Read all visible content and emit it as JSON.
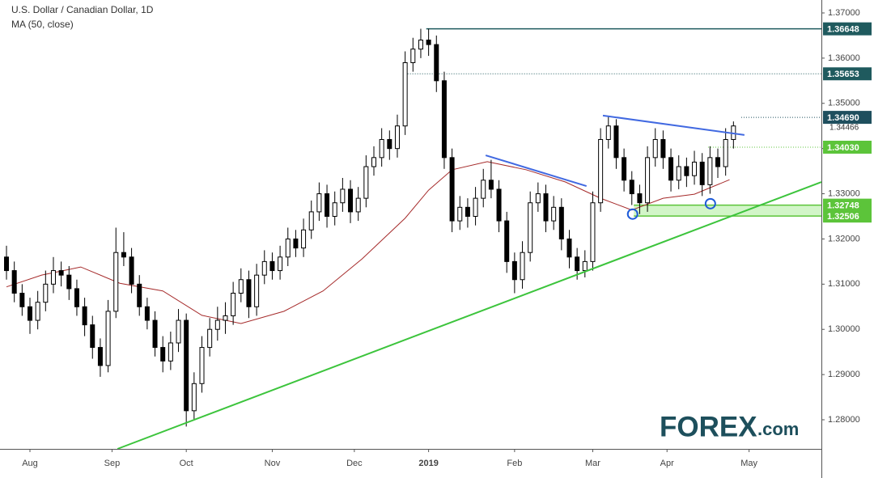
{
  "chart_data": {
    "type": "candlestick",
    "title": "U.S. Dollar / Canadian Dollar, 1D",
    "subtitle": "MA (50, close)",
    "x": [
      0,
      2,
      4,
      6,
      8,
      10,
      12,
      14,
      16,
      18,
      20,
      22,
      24,
      26,
      28,
      30,
      32,
      34,
      36,
      38,
      40,
      42,
      44,
      46,
      48,
      50,
      52,
      54,
      56,
      58,
      60,
      62,
      64,
      66,
      68,
      70,
      72,
      74,
      76,
      78,
      80,
      82,
      84,
      86,
      88,
      90,
      92,
      94,
      96,
      98,
      100,
      102,
      104,
      106,
      108,
      110,
      112,
      114,
      116,
      118,
      120,
      122,
      124,
      126,
      128,
      130,
      132,
      134,
      136,
      138,
      140,
      142,
      144,
      146,
      148,
      150,
      152,
      154,
      156,
      158,
      160,
      162,
      164,
      166,
      168,
      170,
      172,
      174,
      176,
      178,
      180,
      182,
      184,
      186
    ],
    "open": [
      1.316,
      1.313,
      1.308,
      1.305,
      1.302,
      1.306,
      1.31,
      1.313,
      1.312,
      1.309,
      1.305,
      1.301,
      1.296,
      1.292,
      1.304,
      1.317,
      1.316,
      1.31,
      1.305,
      1.302,
      1.296,
      1.293,
      1.297,
      1.302,
      1.282,
      1.288,
      1.296,
      1.3,
      1.302,
      1.303,
      1.308,
      1.311,
      1.305,
      1.312,
      1.315,
      1.313,
      1.316,
      1.32,
      1.318,
      1.322,
      1.326,
      1.33,
      1.325,
      1.328,
      1.331,
      1.326,
      1.329,
      1.336,
      1.338,
      1.342,
      1.34,
      1.345,
      1.359,
      1.362,
      1.364,
      1.363,
      1.355,
      1.338,
      1.324,
      1.327,
      1.325,
      1.329,
      1.333,
      1.331,
      1.324,
      1.315,
      1.311,
      1.317,
      1.328,
      1.33,
      1.324,
      1.327,
      1.32,
      1.316,
      1.313,
      1.315,
      1.328,
      1.342,
      1.345,
      1.338,
      1.333,
      1.33,
      1.328,
      1.338,
      1.342,
      1.338,
      1.333,
      1.336,
      1.334,
      1.337,
      1.332,
      1.338,
      1.336,
      1.342
    ],
    "high": [
      1.3185,
      1.315,
      1.31,
      1.307,
      1.3085,
      1.313,
      1.316,
      1.315,
      1.314,
      1.311,
      1.307,
      1.303,
      1.298,
      1.3065,
      1.3225,
      1.3215,
      1.318,
      1.312,
      1.307,
      1.304,
      1.2985,
      1.2995,
      1.3045,
      1.3035,
      1.2905,
      1.2985,
      1.3025,
      1.305,
      1.306,
      1.3105,
      1.3135,
      1.313,
      1.3145,
      1.3175,
      1.317,
      1.3185,
      1.3225,
      1.322,
      1.3245,
      1.3285,
      1.3325,
      1.332,
      1.3305,
      1.3335,
      1.333,
      1.3315,
      1.3385,
      1.3405,
      1.3445,
      1.344,
      1.3475,
      1.3615,
      1.3645,
      1.3665,
      1.3665,
      1.365,
      1.357,
      1.34,
      1.3295,
      1.329,
      1.3315,
      1.3355,
      1.3375,
      1.333,
      1.326,
      1.317,
      1.3195,
      1.3305,
      1.3325,
      1.332,
      1.3295,
      1.329,
      1.322,
      1.318,
      1.3175,
      1.3305,
      1.3445,
      1.347,
      1.3465,
      1.34,
      1.335,
      1.332,
      1.3405,
      1.3445,
      1.344,
      1.34,
      1.3385,
      1.338,
      1.3395,
      1.339,
      1.3405,
      1.34,
      1.3445,
      1.346
    ],
    "low": [
      1.311,
      1.306,
      1.303,
      1.299,
      1.3,
      1.304,
      1.308,
      1.3095,
      1.3065,
      1.303,
      1.2985,
      1.2935,
      1.2895,
      1.2905,
      1.3025,
      1.314,
      1.308,
      1.303,
      1.3,
      1.294,
      1.2905,
      1.291,
      1.295,
      1.2785,
      1.28,
      1.286,
      1.294,
      1.2975,
      1.299,
      1.301,
      1.306,
      1.3025,
      1.303,
      1.31,
      1.311,
      1.311,
      1.314,
      1.316,
      1.316,
      1.32,
      1.324,
      1.3225,
      1.323,
      1.326,
      1.3235,
      1.324,
      1.327,
      1.334,
      1.336,
      1.3375,
      1.338,
      1.343,
      1.357,
      1.36,
      1.3605,
      1.3525,
      1.3355,
      1.3215,
      1.322,
      1.3225,
      1.323,
      1.327,
      1.329,
      1.3215,
      1.3125,
      1.308,
      1.309,
      1.315,
      1.326,
      1.3215,
      1.322,
      1.3175,
      1.3135,
      1.311,
      1.3115,
      1.313,
      1.326,
      1.34,
      1.3355,
      1.3305,
      1.3275,
      1.3255,
      1.326,
      1.336,
      1.3355,
      1.3305,
      1.331,
      1.3315,
      1.332,
      1.3295,
      1.33,
      1.3335,
      1.334,
      1.34
    ],
    "close": [
      1.313,
      1.308,
      1.305,
      1.302,
      1.306,
      1.31,
      1.313,
      1.312,
      1.309,
      1.305,
      1.301,
      1.296,
      1.292,
      1.304,
      1.317,
      1.316,
      1.31,
      1.305,
      1.302,
      1.296,
      1.293,
      1.297,
      1.302,
      1.282,
      1.288,
      1.296,
      1.3,
      1.302,
      1.303,
      1.308,
      1.311,
      1.305,
      1.312,
      1.315,
      1.313,
      1.316,
      1.32,
      1.318,
      1.322,
      1.326,
      1.33,
      1.325,
      1.328,
      1.331,
      1.326,
      1.329,
      1.336,
      1.338,
      1.342,
      1.34,
      1.345,
      1.359,
      1.362,
      1.364,
      1.363,
      1.355,
      1.338,
      1.324,
      1.327,
      1.325,
      1.329,
      1.333,
      1.331,
      1.324,
      1.315,
      1.311,
      1.317,
      1.328,
      1.33,
      1.324,
      1.327,
      1.32,
      1.316,
      1.313,
      1.315,
      1.328,
      1.342,
      1.345,
      1.338,
      1.333,
      1.33,
      1.328,
      1.338,
      1.342,
      1.338,
      1.333,
      1.336,
      1.334,
      1.337,
      1.332,
      1.338,
      1.336,
      1.342,
      1.345
    ],
    "up_color": "#ffffff",
    "down_color": "#000000",
    "ma": {
      "color": "#a52a2a",
      "x": [
        0,
        9,
        19,
        29,
        40,
        50,
        60,
        71,
        81,
        91,
        102,
        108,
        114,
        123,
        133,
        143,
        152,
        160,
        168,
        176,
        185
      ],
      "values": [
        1.3094,
        1.312,
        1.3138,
        1.3102,
        1.3085,
        1.3031,
        1.3013,
        1.304,
        1.3085,
        1.3156,
        1.3246,
        1.3308,
        1.3353,
        1.3371,
        1.3353,
        1.3326,
        1.329,
        1.3264,
        1.329,
        1.3299,
        1.3331
      ]
    },
    "xlim": [
      -1.66,
      208.5
    ],
    "ylim": [
      1.27356,
      1.37286
    ],
    "yticks": [
      {
        "value": 1.28,
        "label": "1.28000"
      },
      {
        "value": 1.29,
        "label": "1.29000"
      },
      {
        "value": 1.3,
        "label": "1.30000"
      },
      {
        "value": 1.31,
        "label": "1.31000"
      },
      {
        "value": 1.32,
        "label": "1.32000"
      },
      {
        "value": 1.33,
        "label": "1.33000"
      },
      {
        "value": 1.34,
        "label": "1.34000"
      },
      {
        "value": 1.35,
        "label": "1.35000"
      },
      {
        "value": 1.36,
        "label": "1.36000"
      },
      {
        "value": 1.37,
        "label": "1.37000"
      }
    ],
    "xticks": [
      {
        "value": 6,
        "label": "Aug"
      },
      {
        "value": 27,
        "label": "Sep"
      },
      {
        "value": 46,
        "label": "Oct"
      },
      {
        "value": 68,
        "label": "Nov"
      },
      {
        "value": 89,
        "label": "Dec"
      },
      {
        "value": 108,
        "label": "2019",
        "bold": true
      },
      {
        "value": 130,
        "label": "Feb"
      },
      {
        "value": 150,
        "label": "Mar"
      },
      {
        "value": 169,
        "label": "Apr"
      },
      {
        "value": 190,
        "label": "May"
      }
    ],
    "current_price": 1.34466,
    "levels": [
      {
        "value": 1.36648,
        "label": "1.36648",
        "color": "#1f5a5e",
        "from": 107.4,
        "style": "solid"
      },
      {
        "value": 1.35653,
        "label": "1.35653",
        "color": "#1f5a5e",
        "from": 102,
        "style": "dotted"
      },
      {
        "value": 1.3469,
        "label": "1.34690",
        "color": "#1f4f5e",
        "from": 188,
        "style": "dotted"
      },
      {
        "value": 1.3403,
        "label": "1.34030",
        "color": "#5cc43a",
        "from": 179.5,
        "style": "dotted"
      },
      {
        "value": 1.32748,
        "label": "1.32748",
        "color": "#5cc43a",
        "from": 160.5,
        "style": "solid"
      },
      {
        "value": 1.32506,
        "label": "1.32506",
        "color": "#5cc43a",
        "from": 160.5,
        "style": "solid"
      }
    ],
    "band_color": "#d2f5c8",
    "trendlines": [
      {
        "color": "#3cc43c",
        "points": [
          [
            28.4,
            1.27356
          ],
          [
            208.5,
            1.3326
          ]
        ]
      },
      {
        "color": "#4169e1",
        "points": [
          [
            122.6,
            1.3385
          ],
          [
            148.4,
            1.3317
          ]
        ]
      },
      {
        "color": "#4169e1",
        "points": [
          [
            152.6,
            1.3473
          ],
          [
            188.8,
            1.343
          ]
        ]
      }
    ],
    "circles": [
      {
        "x": 160.2,
        "y": 1.3255,
        "color": "#1e5bd8"
      },
      {
        "x": 180.1,
        "y": 1.3278,
        "color": "#1e5bd8"
      }
    ],
    "logo": {
      "text": "FOREX",
      "suffix": ".com"
    }
  }
}
